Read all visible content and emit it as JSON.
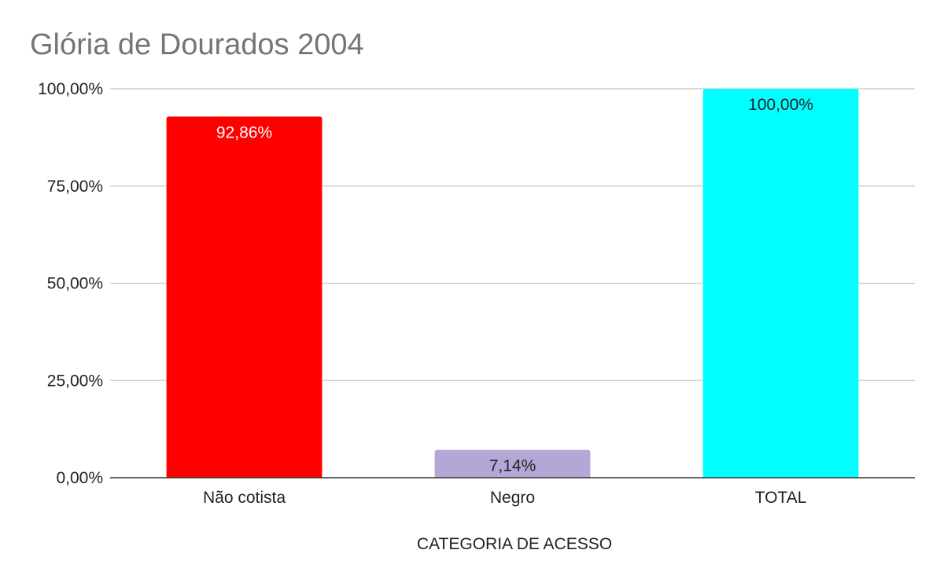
{
  "chart_data": {
    "type": "bar",
    "title": "Glória de Dourados 2004",
    "xlabel": "CATEGORIA DE ACESSO",
    "ylabel": "",
    "ylim": [
      0,
      100
    ],
    "yticks": [
      0,
      25,
      50,
      75,
      100
    ],
    "ytick_labels": [
      "0,00%",
      "25,00%",
      "50,00%",
      "75,00%",
      "100,00%"
    ],
    "categories": [
      "Não cotista",
      "Negro",
      "TOTAL"
    ],
    "values": [
      92.86,
      7.14,
      100
    ],
    "value_labels": [
      "92,86%",
      "7,14%",
      "100,00%"
    ],
    "colors": [
      "#ff0000",
      "#b4a7d6",
      "#00ffff"
    ],
    "label_colors": [
      "#ffffff",
      "#222222",
      "#222222"
    ],
    "grid": true,
    "legend": "none"
  }
}
